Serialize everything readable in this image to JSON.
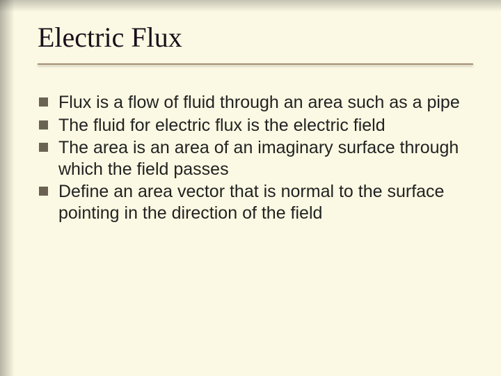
{
  "slide": {
    "background_color": "#fbf9e3",
    "title": {
      "text": "Electric Flux",
      "font_family": "Times New Roman",
      "font_size_pt": 40,
      "color": "#1a0e1a",
      "rule_color": "#a58f74"
    },
    "body": {
      "font_family": "Arial",
      "font_size_pt": 25,
      "text_color": "#222222",
      "bullet_marker": "square",
      "bullet_color": "#6a6353",
      "items": [
        "Flux is a flow of fluid through an area such as a pipe",
        "The fluid for electric flux is the electric field",
        "The area is an area of an imaginary surface through which the field passes",
        "Define an area vector that is normal to the surface pointing in the direction of the field"
      ]
    },
    "shadow": {
      "left_gradient_from": "rgba(0,0,0,0.28)",
      "top_gradient_from": "rgba(0,0,0,0.22)"
    }
  }
}
